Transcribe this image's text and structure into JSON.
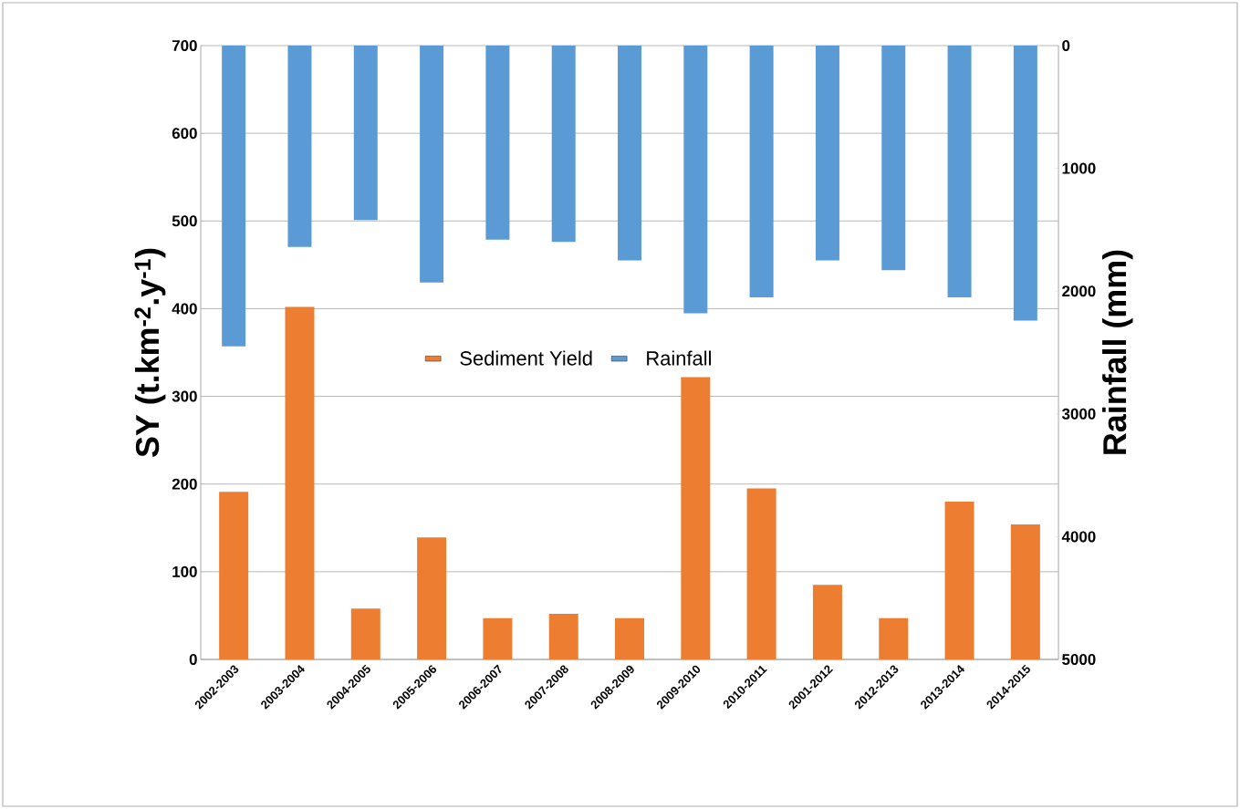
{
  "chart_data": {
    "type": "bar",
    "categories": [
      "2002-2003",
      "2003-2004",
      "2004-2005",
      "2005-2006",
      "2006-2007",
      "2007-2008",
      "2008-2009",
      "2009-2010",
      "2010-2011",
      "2001-2012",
      "2012-2013",
      "2013-2014",
      "2014-2015"
    ],
    "series": [
      {
        "name": "Sediment Yield",
        "color": "#ed7d31",
        "values": [
          191,
          402,
          58,
          139,
          47,
          52,
          47,
          322,
          195,
          85,
          47,
          180,
          154
        ]
      },
      {
        "name": "Rainfall",
        "color": "#5b9bd5",
        "axis": "y2",
        "values": [
          2450,
          1640,
          1420,
          1930,
          1580,
          1600,
          1750,
          2180,
          2050,
          1750,
          1830,
          2050,
          2240
        ]
      }
    ],
    "ylabel": "SY (t.km$^{-2}$.y$^{-1}$)",
    "y2label": "Rainfall (mm)",
    "ylim": [
      0,
      700
    ],
    "yticks": [
      0,
      100,
      200,
      300,
      400,
      500,
      600,
      700
    ],
    "y2lim": [
      5000,
      0
    ],
    "y2ticks": [
      0,
      1000,
      2000,
      3000,
      4000,
      5000
    ],
    "grid": "y",
    "legend": "center"
  }
}
